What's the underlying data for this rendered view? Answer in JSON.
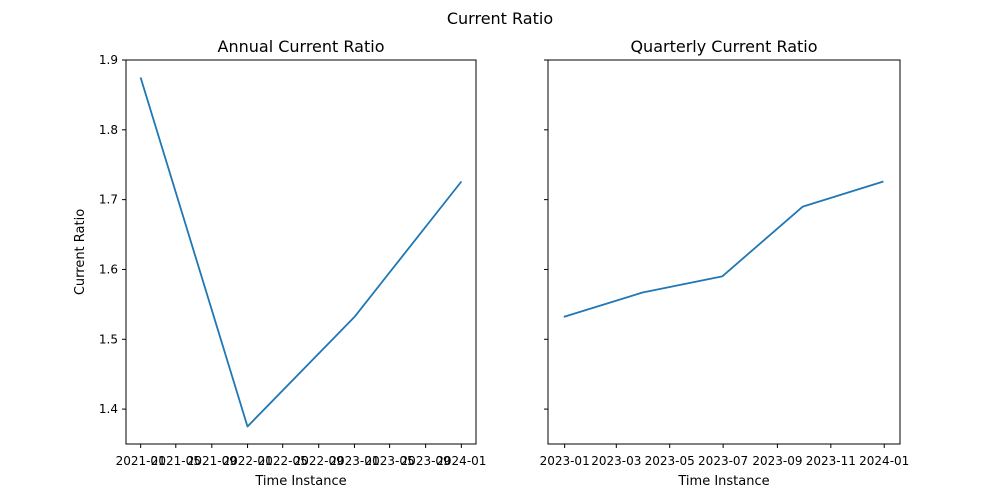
{
  "figure": {
    "title": "Current Ratio"
  },
  "chart_data": [
    {
      "type": "line",
      "title": "Annual Current Ratio",
      "xlabel": "Time Instance",
      "ylabel": "Current Ratio",
      "series": [
        {
          "x": [
            "2021-01-01",
            "2022-01-01",
            "2023-01-01",
            "2024-01-01"
          ],
          "values": [
            1.875,
            1.375,
            1.532,
            1.726
          ],
          "color": "#1f77b4"
        }
      ],
      "xticks": [
        "2021-01",
        "2021-05",
        "2021-09",
        "2022-01",
        "2022-05",
        "2022-09",
        "2023-01",
        "2023-05",
        "2023-09",
        "2024-01"
      ],
      "xlim": [
        "2020-11-12",
        "2024-02-20"
      ],
      "yticks": [
        1.4,
        1.5,
        1.6,
        1.7,
        1.8,
        1.9
      ],
      "ylim": [
        1.35,
        1.9
      ],
      "grid": false
    },
    {
      "type": "line",
      "title": "Quarterly Current Ratio",
      "xlabel": "Time Instance",
      "ylabel": "",
      "series": [
        {
          "x": [
            "2022-12-31",
            "2023-03-31",
            "2023-06-30",
            "2023-09-30",
            "2023-12-31"
          ],
          "values": [
            1.532,
            1.567,
            1.59,
            1.69,
            1.726
          ],
          "color": "#1f77b4"
        }
      ],
      "xticks": [
        "2023-01",
        "2023-03",
        "2023-05",
        "2023-07",
        "2023-09",
        "2023-11",
        "2024-01"
      ],
      "xlim": [
        "2022-12-13",
        "2024-01-19"
      ],
      "yticks": [
        1.4,
        1.5,
        1.6,
        1.7,
        1.8,
        1.9
      ],
      "ylim": [
        1.35,
        1.9
      ],
      "shared_y": true,
      "grid": false
    }
  ]
}
